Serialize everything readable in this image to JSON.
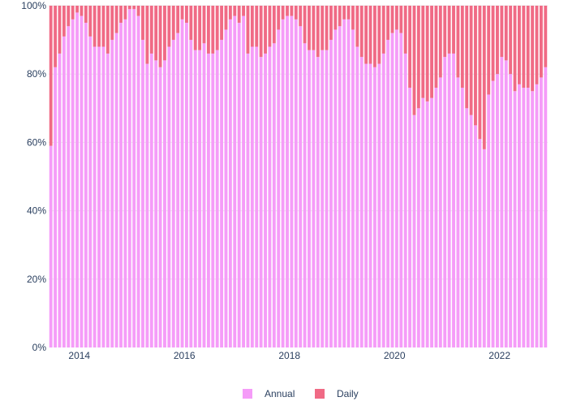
{
  "chart_data": {
    "type": "bar",
    "stacking": "percent",
    "x_start": "2013-06",
    "x_end": "2022-11",
    "x_interval": "month",
    "x_range": [
      "2013-06",
      "2022-12"
    ],
    "x_ticks": [
      {
        "date": "2014-01",
        "label": "2014"
      },
      {
        "date": "2016-01",
        "label": "2016"
      },
      {
        "date": "2018-01",
        "label": "2018"
      },
      {
        "date": "2020-01",
        "label": "2020"
      },
      {
        "date": "2022-01",
        "label": "2022"
      }
    ],
    "y_ticks": [
      {
        "value": 0,
        "label": "0%"
      },
      {
        "value": 20,
        "label": "20%"
      },
      {
        "value": 40,
        "label": "40%"
      },
      {
        "value": 60,
        "label": "60%"
      },
      {
        "value": 80,
        "label": "80%"
      },
      {
        "value": 100,
        "label": "100%"
      }
    ],
    "ylim": [
      0,
      100
    ],
    "grid": true,
    "legend_position": "bottom-center",
    "series": [
      {
        "name": "Annual",
        "color": "#f59cf8",
        "values": [
          59,
          82,
          86,
          91,
          94,
          96,
          98,
          97,
          95,
          91,
          88,
          88,
          88,
          86,
          90,
          92,
          95,
          96,
          99,
          99,
          97,
          90,
          83,
          86,
          84,
          82,
          84,
          88,
          90,
          92,
          96,
          95,
          90,
          87,
          87,
          89,
          86,
          86,
          87,
          90,
          93,
          96,
          97,
          95,
          97,
          86,
          88,
          88,
          85,
          86,
          88,
          89,
          93,
          96,
          97,
          97,
          96,
          94,
          89,
          87,
          87,
          85,
          87,
          87,
          90,
          93,
          94,
          96,
          96,
          93,
          88,
          85,
          83,
          83,
          82,
          83,
          86,
          90,
          92,
          93,
          92,
          86,
          76,
          68,
          70,
          73,
          72,
          73,
          76,
          79,
          85,
          86,
          86,
          79,
          76,
          70,
          68,
          65,
          61,
          58,
          74,
          78,
          80,
          85,
          84,
          80,
          75,
          77,
          76,
          76,
          75,
          77,
          79,
          82
        ]
      },
      {
        "name": "Daily",
        "color": "#f06a85",
        "values": [
          41,
          18,
          14,
          9,
          6,
          4,
          2,
          3,
          5,
          9,
          12,
          12,
          12,
          14,
          10,
          8,
          5,
          4,
          1,
          1,
          3,
          10,
          17,
          14,
          16,
          18,
          16,
          12,
          10,
          8,
          4,
          5,
          10,
          13,
          13,
          11,
          14,
          14,
          13,
          10,
          7,
          4,
          3,
          5,
          3,
          14,
          12,
          12,
          15,
          14,
          12,
          11,
          7,
          4,
          3,
          3,
          4,
          6,
          11,
          13,
          13,
          15,
          13,
          13,
          10,
          7,
          6,
          4,
          4,
          7,
          12,
          15,
          17,
          17,
          18,
          17,
          14,
          10,
          8,
          7,
          8,
          14,
          24,
          32,
          30,
          27,
          28,
          27,
          24,
          21,
          15,
          14,
          14,
          21,
          24,
          30,
          32,
          35,
          39,
          42,
          26,
          22,
          20,
          15,
          16,
          20,
          25,
          23,
          24,
          24,
          25,
          23,
          21,
          18
        ]
      }
    ]
  }
}
